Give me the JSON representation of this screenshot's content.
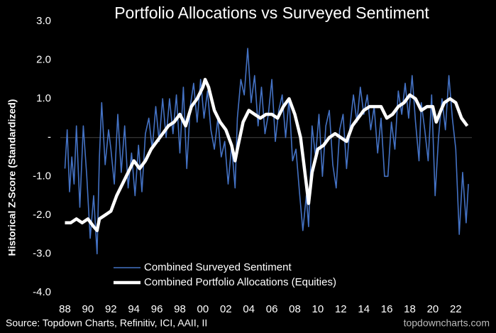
{
  "chart_data": {
    "type": "line",
    "title": "Portfolio Allocations vs Surveyed Sentiment",
    "y_label": "Historical Z-Score (Standardized)",
    "source": "Source: Topdown Charts, Refinitiv, ICI, AAII, II",
    "watermark": "topdowncharts.com",
    "xlim": [
      1987.6,
      2023.4
    ],
    "xticks": [
      {
        "value": 1988,
        "label": "88"
      },
      {
        "value": 1990,
        "label": "90"
      },
      {
        "value": 1992,
        "label": "92"
      },
      {
        "value": 1994,
        "label": "94"
      },
      {
        "value": 1996,
        "label": "96"
      },
      {
        "value": 1998,
        "label": "98"
      },
      {
        "value": 2000,
        "label": "00"
      },
      {
        "value": 2002,
        "label": "02"
      },
      {
        "value": 2004,
        "label": "04"
      },
      {
        "value": 2006,
        "label": "06"
      },
      {
        "value": 2008,
        "label": "08"
      },
      {
        "value": 2010,
        "label": "10"
      },
      {
        "value": 2012,
        "label": "12"
      },
      {
        "value": 2014,
        "label": "14"
      },
      {
        "value": 2016,
        "label": "16"
      },
      {
        "value": 2018,
        "label": "18"
      },
      {
        "value": 2020,
        "label": "20"
      },
      {
        "value": 2022,
        "label": "22"
      }
    ],
    "ylim": [
      -4,
      3
    ],
    "yticks": [
      {
        "value": 3,
        "label": "3.0"
      },
      {
        "value": 2,
        "label": "2.0"
      },
      {
        "value": 1,
        "label": "1.0"
      },
      {
        "value": 0,
        "label": "-"
      },
      {
        "value": -1,
        "label": "-1.0"
      },
      {
        "value": -2,
        "label": "-2.0"
      },
      {
        "value": -3,
        "label": "-3.0"
      },
      {
        "value": -4,
        "label": "-4.0"
      }
    ],
    "series": [
      {
        "name": "Combined Surveyed Sentiment",
        "color": "#4472c4",
        "width": 1.6,
        "x": [
          1988.0,
          1988.2,
          1988.4,
          1988.6,
          1988.8,
          1989,
          1989.3,
          1989.6,
          1989.9,
          1990.2,
          1990.5,
          1990.8,
          1991,
          1991.2,
          1991.5,
          1991.8,
          1992,
          1992.3,
          1992.6,
          1992.9,
          1993.2,
          1993.5,
          1993.8,
          1994.1,
          1994.4,
          1994.7,
          1995,
          1995.3,
          1995.6,
          1995.9,
          1996.2,
          1996.5,
          1996.8,
          1997.1,
          1997.4,
          1997.7,
          1998,
          1998.3,
          1998.6,
          1998.9,
          1999.2,
          1999.5,
          1999.8,
          2000.1,
          2000.4,
          2000.7,
          2001,
          2001.3,
          2001.6,
          2001.9,
          2002.2,
          2002.5,
          2002.8,
          2003,
          2003.3,
          2003.6,
          2003.9,
          2004.2,
          2004.5,
          2004.8,
          2005.1,
          2005.4,
          2005.7,
          2006,
          2006.3,
          2006.6,
          2006.9,
          2007.2,
          2007.5,
          2007.8,
          2008.1,
          2008.4,
          2008.7,
          2009,
          2009.2,
          2009.5,
          2009.8,
          2010.1,
          2010.4,
          2010.7,
          2011,
          2011.3,
          2011.6,
          2011.9,
          2012.2,
          2012.5,
          2012.8,
          2013.1,
          2013.4,
          2013.7,
          2014,
          2014.3,
          2014.6,
          2014.9,
          2015.2,
          2015.5,
          2015.8,
          2016.1,
          2016.4,
          2016.7,
          2017,
          2017.3,
          2017.6,
          2017.9,
          2018.2,
          2018.5,
          2018.8,
          2019,
          2019.3,
          2019.6,
          2019.9,
          2020.2,
          2020.5,
          2020.8,
          2021.1,
          2021.4,
          2021.7,
          2022,
          2022.3,
          2022.6,
          2022.9,
          2023.1
        ],
        "values": [
          -0.8,
          0.2,
          -1.4,
          -0.5,
          -1.2,
          0.3,
          -1.8,
          0.3,
          -1.0,
          -2.6,
          -1.5,
          -3.0,
          -0.5,
          0.9,
          -0.7,
          0.2,
          -0.3,
          -1.2,
          0.6,
          -0.9,
          0.3,
          -1.3,
          -0.4,
          -1.5,
          -0.2,
          -1.4,
          0.1,
          0.5,
          -0.3,
          0.8,
          -0.1,
          1.0,
          0.0,
          1.0,
          0.1,
          1.1,
          -0.4,
          1.3,
          -0.8,
          0.8,
          1.4,
          0.4,
          1.5,
          0.5,
          1.2,
          0.2,
          -0.3,
          0.5,
          -0.5,
          -0.1,
          -1.2,
          -0.2,
          -1.3,
          0.5,
          1.5,
          1.1,
          2.3,
          0.9,
          1.6,
          0.3,
          1.3,
          0.1,
          0.6,
          1.5,
          -0.1,
          0.7,
          1.1,
          0.0,
          1.0,
          -0.6,
          -0.3,
          -1.4,
          -2.4,
          -1.5,
          -2.3,
          0.3,
          -0.5,
          0.6,
          -1.0,
          0.3,
          0.7,
          -0.7,
          -1.3,
          0.2,
          0.6,
          -0.8,
          0.3,
          1.1,
          0.4,
          1.3,
          0.6,
          1.1,
          0.2,
          0.8,
          -0.4,
          0.5,
          -1.0,
          -1.0,
          0.4,
          -0.3,
          1.2,
          0.6,
          1.4,
          0.5,
          1.6,
          0.4,
          -0.6,
          0.9,
          0.2,
          -0.6,
          1.1,
          -1.5,
          0.0,
          1.0,
          0.2,
          1.6,
          0.5,
          -0.3,
          -2.5,
          -0.9,
          -2.2,
          -1.2
        ]
      },
      {
        "name": "Combined Portfolio Allocations (Equities)",
        "color": "#ffffff",
        "width": 4.5,
        "x": [
          1988.0,
          1988.5,
          1989,
          1989.5,
          1990,
          1990.5,
          1990.8,
          1991,
          1991.5,
          1992,
          1992.5,
          1993,
          1993.5,
          1994,
          1994.5,
          1995,
          1995.5,
          1996,
          1996.5,
          1997,
          1997.5,
          1998,
          1998.5,
          1999,
          1999.5,
          2000,
          2000.2,
          2000.5,
          2001,
          2001.5,
          2002,
          2002.5,
          2002.8,
          2003,
          2003.5,
          2004,
          2004.5,
          2005,
          2005.5,
          2006,
          2006.5,
          2007,
          2007.5,
          2008,
          2008.5,
          2009,
          2009.2,
          2009.5,
          2010,
          2010.5,
          2011,
          2011.5,
          2012,
          2012.5,
          2013,
          2013.5,
          2014,
          2014.5,
          2015,
          2015.5,
          2016,
          2016.5,
          2017,
          2017.5,
          2018,
          2018.5,
          2019,
          2019.5,
          2020,
          2020.3,
          2020.7,
          2021,
          2021.5,
          2022,
          2022.5,
          2023
        ],
        "values": [
          -2.2,
          -2.2,
          -2.1,
          -2.2,
          -2.1,
          -2.3,
          -2.4,
          -2.1,
          -2.0,
          -1.9,
          -1.5,
          -1.2,
          -0.9,
          -0.6,
          -0.8,
          -0.6,
          -0.3,
          -0.1,
          0.1,
          0.3,
          0.4,
          0.6,
          0.3,
          0.8,
          1.0,
          1.3,
          1.5,
          1.3,
          0.7,
          0.4,
          0.2,
          -0.2,
          -0.6,
          -0.3,
          0.4,
          0.7,
          0.6,
          0.5,
          0.6,
          0.6,
          0.5,
          0.8,
          1.0,
          0.6,
          0.0,
          -1.2,
          -1.7,
          -0.9,
          -0.3,
          -0.2,
          0.0,
          0.1,
          0.0,
          -0.1,
          0.3,
          0.5,
          0.7,
          0.8,
          0.8,
          0.8,
          0.5,
          0.6,
          0.8,
          0.9,
          1.1,
          1.0,
          0.7,
          0.8,
          0.8,
          0.4,
          0.7,
          0.9,
          1.0,
          0.9,
          0.5,
          0.3
        ]
      }
    ],
    "zero_line": true
  }
}
